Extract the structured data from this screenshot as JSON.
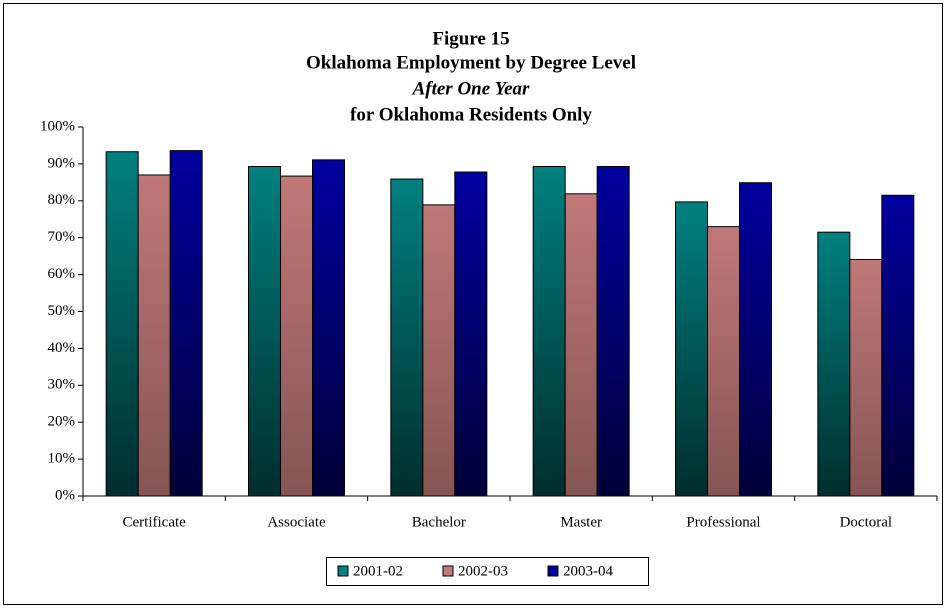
{
  "chart_data": {
    "type": "bar",
    "title": [
      "Figure 15",
      "Oklahoma Employment by Degree Level",
      "After One Year",
      "for Oklahoma Residents Only"
    ],
    "categories": [
      "Certificate",
      "Associate",
      "Bachelor",
      "Master",
      "Professional",
      "Doctoral"
    ],
    "series": [
      {
        "name": "2001-02",
        "color": "#008080",
        "values": [
          93.3,
          89.3,
          85.9,
          89.3,
          79.7,
          71.5
        ]
      },
      {
        "name": "2002-03",
        "color": "#c07878",
        "values": [
          87.0,
          86.7,
          78.9,
          81.9,
          73.0,
          64.1
        ]
      },
      {
        "name": "2003-04",
        "color": "#0000a0",
        "values": [
          93.6,
          91.1,
          87.8,
          89.3,
          84.9,
          81.5
        ]
      }
    ],
    "ylim": [
      0,
      100
    ],
    "yticks": [
      {
        "value": 0,
        "label": "0%"
      },
      {
        "value": 10,
        "label": "10%"
      },
      {
        "value": 20,
        "label": "20%"
      },
      {
        "value": 30,
        "label": "30%"
      },
      {
        "value": 40,
        "label": "40%"
      },
      {
        "value": 50,
        "label": "50%"
      },
      {
        "value": 60,
        "label": "60%"
      },
      {
        "value": 70,
        "label": "70%"
      },
      {
        "value": 80,
        "label": "80%"
      },
      {
        "value": 90,
        "label": "90%"
      },
      {
        "value": 100,
        "label": "100%"
      }
    ],
    "grid": false,
    "legend": "bottom"
  }
}
